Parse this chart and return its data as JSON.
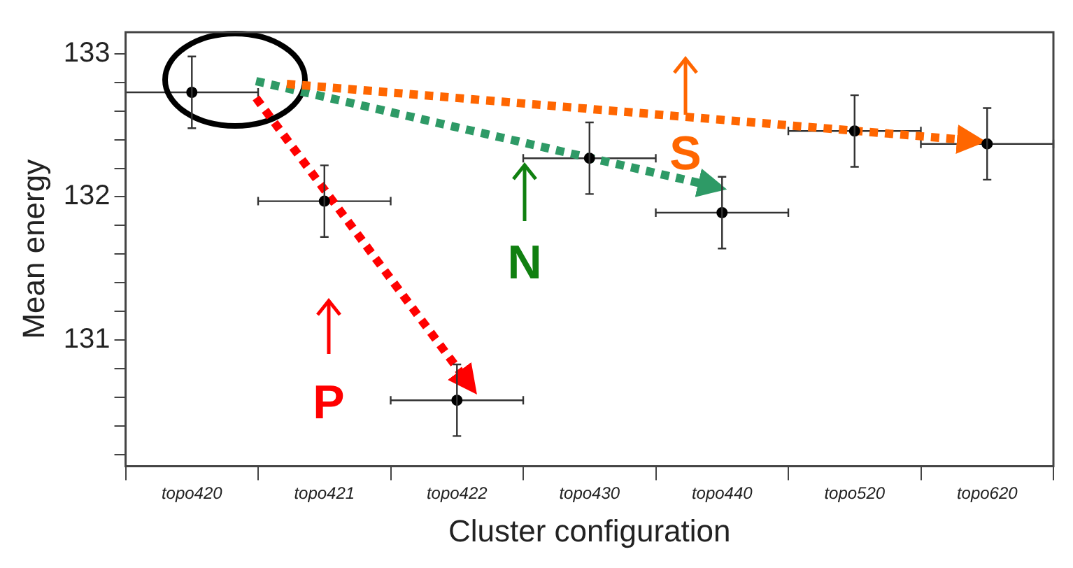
{
  "chart_data": {
    "type": "scatter",
    "xlabel": "Cluster configuration",
    "ylabel": "Mean energy",
    "categories": [
      "topo420",
      "topo421",
      "topo422",
      "topo430",
      "topo440",
      "topo520",
      "topo620"
    ],
    "values": [
      132.73,
      131.97,
      130.58,
      132.27,
      131.89,
      132.46,
      132.37
    ],
    "errors": [
      0.25,
      0.25,
      0.25,
      0.25,
      0.25,
      0.25,
      0.25
    ],
    "color": "#000000",
    "marker": "circle",
    "grid": false,
    "ylim": [
      130.12,
      133.15
    ],
    "yticks": [
      {
        "value": 130.2,
        "label": null
      },
      {
        "value": 130.4,
        "label": null
      },
      {
        "value": 130.6,
        "label": null
      },
      {
        "value": 130.8,
        "label": null
      },
      131,
      {
        "value": 131.2,
        "label": null
      },
      {
        "value": 131.4,
        "label": null
      },
      {
        "value": 131.6,
        "label": null
      },
      {
        "value": 131.8,
        "label": null
      },
      132,
      {
        "value": 132.2,
        "label": null
      },
      {
        "value": 132.4,
        "label": null
      },
      {
        "value": 132.6,
        "label": null
      },
      {
        "value": 132.8,
        "label": null
      },
      133
    ],
    "annotations": [
      "P",
      "N",
      "S"
    ]
  }
}
